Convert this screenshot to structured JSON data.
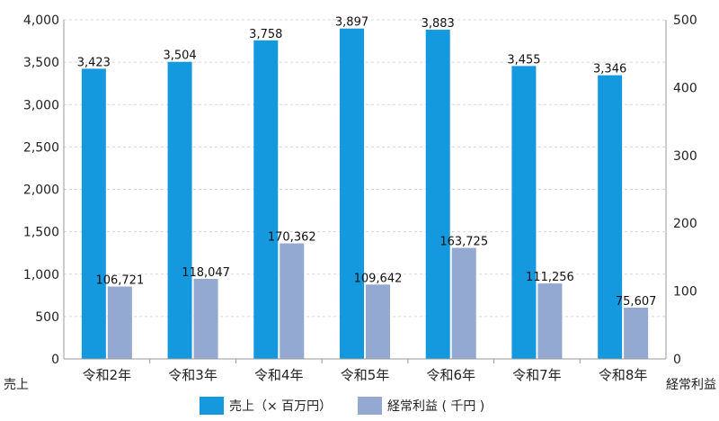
{
  "chart_data": {
    "type": "bar",
    "categories": [
      "令和2年",
      "令和3年",
      "令和4年",
      "令和5年",
      "令和6年",
      "令和7年",
      "令和8年"
    ],
    "series": [
      {
        "name": "売上（× 百万円）",
        "axis": "left",
        "color": "#1599DE",
        "values": [
          3423,
          3504,
          3758,
          3897,
          3883,
          3455,
          3346
        ],
        "labels": [
          "3,423",
          "3,504",
          "3,758",
          "3,897",
          "3,883",
          "3,455",
          "3,346"
        ]
      },
      {
        "name": "経常利益 ( 千円 )",
        "axis": "right",
        "color": "#93A9D2",
        "values": [
          106721,
          118047,
          170362,
          109642,
          163725,
          111256,
          75607
        ],
        "labels": [
          "106,721",
          "118,047",
          "170,362",
          "109,642",
          "163,725",
          "111,256",
          "75,607"
        ]
      }
    ],
    "left_axis": {
      "label": "売上",
      "min": 0,
      "max": 4000,
      "ticks": [
        0,
        500,
        1000,
        1500,
        2000,
        2500,
        3000,
        3500,
        4000
      ],
      "tick_labels": [
        "0",
        "500",
        "1,000",
        "1,500",
        "2,000",
        "2,500",
        "3,000",
        "3,500",
        "4,000"
      ]
    },
    "right_axis": {
      "label": "経常利益",
      "min": 0,
      "max": 500,
      "ticks": [
        0,
        100,
        200,
        300,
        400,
        500
      ],
      "tick_labels": [
        "0",
        "100",
        "200",
        "300",
        "400",
        "500"
      ]
    },
    "grid": true,
    "legend_position": "bottom"
  }
}
